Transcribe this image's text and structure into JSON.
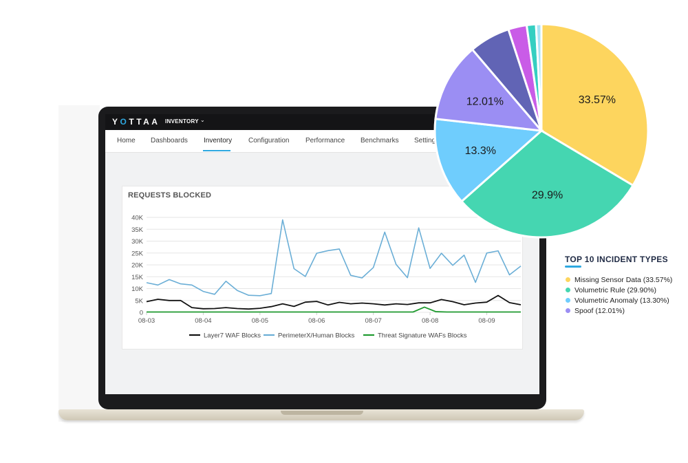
{
  "app": {
    "brand_prefix": "Y",
    "brand_o": "O",
    "brand_suffix": "TTAA",
    "menu_label": "INVENTORY",
    "menu_caret": "⌄"
  },
  "nav": {
    "items": [
      "Home",
      "Dashboards",
      "Inventory",
      "Configuration",
      "Performance",
      "Benchmarks",
      "Settings"
    ],
    "active": "Inventory"
  },
  "colors": {
    "accent": "#2ea8e0",
    "layer7": "#111111",
    "perimeterx": "#6aaed6",
    "threat": "#1f9a2f",
    "pie": [
      "#fdd55e",
      "#45d6b1",
      "#6fcdfd",
      "#9b8ef3",
      "#6164b5",
      "#c95ce7",
      "#35cfc1",
      "#a8e4f5"
    ]
  },
  "chart_data": [
    {
      "type": "line",
      "title": "REQUESTS BLOCKED",
      "x_ticks": [
        "08-03",
        "08-04",
        "08-05",
        "08-06",
        "08-07",
        "08-08",
        "08-09"
      ],
      "y_ticks": [
        "0",
        "5K",
        "10K",
        "15K",
        "20K",
        "25K",
        "30K",
        "35K",
        "40K"
      ],
      "ylim": [
        0,
        40000
      ],
      "x_range_days": [
        0,
        6.6
      ],
      "grid": true,
      "legend_position": "bottom",
      "series": [
        {
          "name": "Layer7 WAF Blocks",
          "color_key": "layer7",
          "x": [
            0,
            0.2,
            0.4,
            0.6,
            0.8,
            1.0,
            1.2,
            1.4,
            1.6,
            1.8,
            2.0,
            2.2,
            2.4,
            2.6,
            2.8,
            3.0,
            3.2,
            3.4,
            3.6,
            3.8,
            4.0,
            4.2,
            4.4,
            4.6,
            4.8,
            5.0,
            5.2,
            5.4,
            5.6,
            5.8,
            6.0,
            6.2,
            6.4,
            6.6
          ],
          "y": [
            4500,
            5500,
            5000,
            5000,
            2000,
            1500,
            1600,
            2000,
            1600,
            1400,
            1700,
            2400,
            3600,
            2500,
            4300,
            4600,
            3100,
            4200,
            3600,
            3900,
            3600,
            3100,
            3600,
            3300,
            4000,
            4000,
            5400,
            4500,
            3200,
            3900,
            4300,
            7100,
            4100,
            3200
          ]
        },
        {
          "name": "PerimeterX/Human Blocks",
          "color_key": "perimeterx",
          "x": [
            0,
            0.2,
            0.4,
            0.6,
            0.8,
            1.0,
            1.2,
            1.4,
            1.6,
            1.8,
            2.0,
            2.2,
            2.4,
            2.6,
            2.8,
            3.0,
            3.2,
            3.4,
            3.6,
            3.8,
            4.0,
            4.2,
            4.4,
            4.6,
            4.8,
            5.0,
            5.2,
            5.4,
            5.6,
            5.8,
            6.0,
            6.2,
            6.4,
            6.6
          ],
          "y": [
            12500,
            11500,
            13800,
            12000,
            11500,
            8800,
            7600,
            13100,
            9200,
            7200,
            7000,
            7900,
            39000,
            18400,
            15100,
            24900,
            26000,
            26700,
            15600,
            14500,
            18900,
            33800,
            20200,
            14600,
            35600,
            18500,
            24900,
            19800,
            24100,
            12600,
            25000,
            25900,
            15800,
            19500
          ]
        },
        {
          "name": "Threat Signature WAFs Blocks",
          "color_key": "threat",
          "x": [
            0,
            0.4,
            0.8,
            1.2,
            1.6,
            2.0,
            2.4,
            2.8,
            3.2,
            3.6,
            4.0,
            4.4,
            4.6,
            4.7,
            4.9,
            5.1,
            5.3,
            5.6,
            6.0,
            6.6
          ],
          "y": [
            150,
            150,
            150,
            150,
            150,
            150,
            150,
            150,
            150,
            150,
            150,
            150,
            150,
            150,
            2200,
            300,
            150,
            150,
            150,
            150
          ]
        }
      ]
    },
    {
      "type": "pie",
      "title": "TOP 10 INCIDENT TYPES",
      "slices": [
        {
          "label": "Missing Sensor Data",
          "value": 33.57,
          "display": "33.57%",
          "legend": "Missing Sensor Data (33.57%)"
        },
        {
          "label": "Volumetric Rule",
          "value": 29.9,
          "display": "29.9%",
          "legend": "Volumetric Rule (29.90%)"
        },
        {
          "label": "Volumetric Anomaly",
          "value": 13.3,
          "display": "13.3%",
          "legend": "Volumetric Anomaly (13.30%)"
        },
        {
          "label": "Spoof",
          "value": 12.01,
          "display": "12.01%",
          "legend": "Spoof (12.01%)"
        },
        {
          "label": "",
          "value": 6.2,
          "display": ""
        },
        {
          "label": "",
          "value": 2.8,
          "display": ""
        },
        {
          "label": "",
          "value": 1.4,
          "display": ""
        },
        {
          "label": "",
          "value": 0.82,
          "display": ""
        }
      ]
    }
  ]
}
